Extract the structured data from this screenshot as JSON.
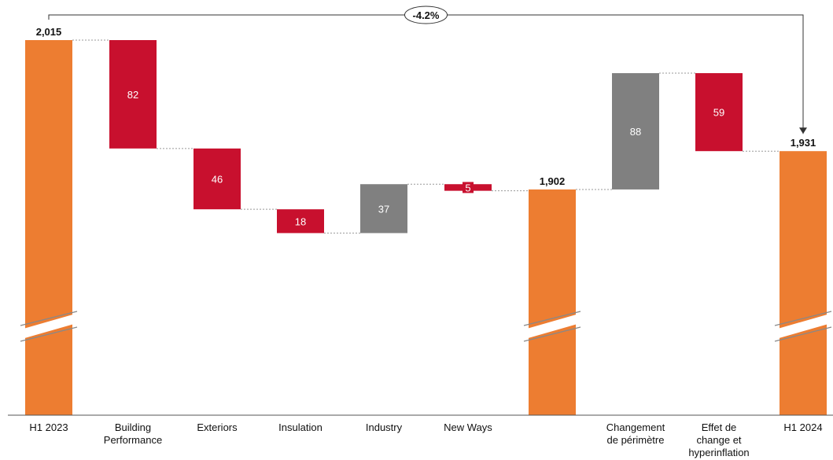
{
  "chart_data": {
    "type": "waterfall",
    "categories": [
      [
        "H1 2023"
      ],
      [
        "Building",
        "Performance"
      ],
      [
        "Exteriors"
      ],
      [
        "Insulation"
      ],
      [
        "Industry"
      ],
      [
        "New Ways"
      ],
      [
        ""
      ],
      [
        "Changement",
        "de périmètre"
      ],
      [
        "Effet de",
        "change et",
        "hyperinflation"
      ],
      [
        "H1 2024"
      ]
    ],
    "bars": [
      {
        "kind": "total",
        "value": 2015,
        "label": "2,015"
      },
      {
        "kind": "decrease",
        "value": 82,
        "label": "82"
      },
      {
        "kind": "decrease",
        "value": 46,
        "label": "46"
      },
      {
        "kind": "decrease",
        "value": 18,
        "label": "18"
      },
      {
        "kind": "increase",
        "value": 37,
        "label": "37"
      },
      {
        "kind": "decrease",
        "value": 5,
        "label": "5"
      },
      {
        "kind": "total",
        "value": 1902,
        "label": "1,902"
      },
      {
        "kind": "increase",
        "value": 88,
        "label": "88"
      },
      {
        "kind": "decrease",
        "value": 59,
        "label": "59"
      },
      {
        "kind": "total",
        "value": 1931,
        "label": "1,931"
      }
    ],
    "change_annotation": {
      "from": 0,
      "to": 9,
      "label": "-4.2%"
    },
    "axis_break": true,
    "colors": {
      "total": "#ED7D31",
      "decrease": "#C8102E",
      "increase": "#808080",
      "connector": "#999999",
      "axis": "#555555"
    },
    "grid": false,
    "legend": "none"
  }
}
